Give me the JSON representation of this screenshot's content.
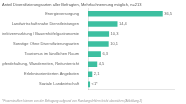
{
  "chart_data": {
    "type": "bar",
    "orientation": "horizontal",
    "title": "Anteil Diversifizierungsarten aller Befragten, Mehrfachnennung möglich, n=213",
    "footnote": "*Prozentzahlen können von der Befragung aufgrund von Rundungsfehlern leicht abweichen (Abbildung 2)",
    "categories": [
      "Energieversorgung",
      "Landwirtschaftsnahe Dienstleistungen",
      "Direktvermarktung / Bauernhöfe/gastronomie",
      "Sonstige Ohne Diversifizierungsarten",
      "Tourismus im ländlichen Raum",
      "Pensionspferdehaltung, Wanderreiten, Reitunterricht",
      "Erlebnisorientierten Angeboten",
      "Soziale Landwirtschaft"
    ],
    "values": [
      36.5,
      14.4,
      10.3,
      10.1,
      6.3,
      4.5,
      2.1,
      1.0
    ],
    "value_labels": [
      "36,5",
      "14,4",
      "10,3",
      "10,1",
      "6,3",
      "4,5",
      "2,1",
      "<1*"
    ],
    "color": "#3dbfa0",
    "xlim": [
      0,
      42
    ],
    "grid": false,
    "data_labels": true,
    "tick_labels": "y"
  }
}
